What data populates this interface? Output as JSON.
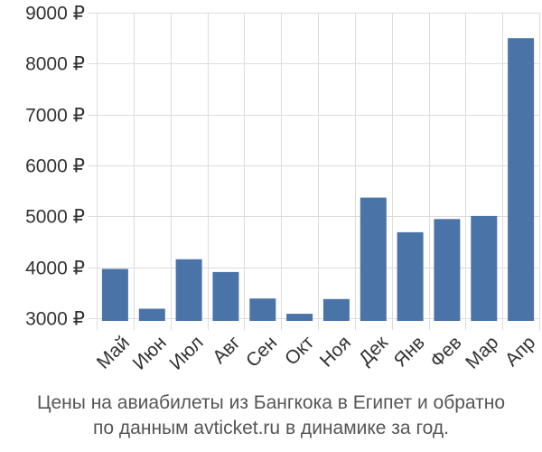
{
  "caption": {
    "line1": "Цены на авиабилеты из Бангкока в Египет и обратно",
    "line2": "по данным avticket.ru в динамике за год."
  },
  "chart_data": {
    "type": "bar",
    "title": "",
    "xlabel": "",
    "ylabel": "",
    "categories": [
      "Май",
      "Июн",
      "Июл",
      "Авг",
      "Сен",
      "Окт",
      "Ноя",
      "Дек",
      "Янв",
      "Фев",
      "Мар",
      "Апр"
    ],
    "values": [
      3970,
      3190,
      4160,
      3910,
      3390,
      3090,
      3380,
      5370,
      4690,
      4950,
      5010,
      8500
    ],
    "ylim": [
      2950,
      9000
    ],
    "yticks": [
      3000,
      4000,
      5000,
      6000,
      7000,
      8000,
      9000
    ],
    "ytick_labels": [
      "3000 ₽",
      "4000 ₽",
      "5000 ₽",
      "6000 ₽",
      "7000 ₽",
      "8000 ₽",
      "9000 ₽"
    ],
    "grid": true,
    "legend": "none",
    "bar_color": "#4a74a8",
    "grid_color": "#dddddd"
  }
}
